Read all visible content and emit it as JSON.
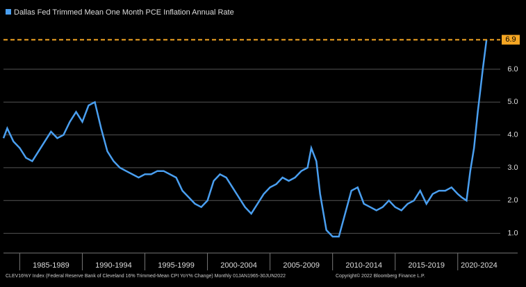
{
  "chart_data": {
    "type": "line",
    "title": "Dallas Fed Trimmed Mean One Month PCE Inflation Annual Rate",
    "footer": "CLEV16%Y Index (Federal Reserve Bank of Cleveland 16% Trimmed-Mean CPI YoY% Change)  Monthly 01JAN1965-30JUN2022",
    "copyright": "Copyright© 2022 Bloomberg Finance L.P.",
    "categories": [
      "1985-1989",
      "1990-1994",
      "1995-1999",
      "2000-2004",
      "2005-2009",
      "2010-2014",
      "2015-2019",
      "2020-2024"
    ],
    "xlim": [
      1983.7,
      2023.4
    ],
    "xticks": [
      1985,
      1990,
      1995,
      2000,
      2005,
      2010,
      2015,
      2020
    ],
    "ylim": [
      0.4,
      7.9
    ],
    "yticks": [
      {
        "value": 1,
        "label": "1.0"
      },
      {
        "value": 2,
        "label": "2.0"
      },
      {
        "value": 3,
        "label": "3.0"
      },
      {
        "value": 4,
        "label": "4.0"
      },
      {
        "value": 5,
        "label": "5.0"
      },
      {
        "value": 6,
        "label": "6.0"
      }
    ],
    "grid": true,
    "series": [
      {
        "name": "Dallas Fed Trimmed Mean One Month PCE Inflation Annual Rate",
        "color": "#4a9ff0",
        "x": [
          1983.7,
          1984,
          1984.5,
          1985,
          1985.5,
          1986,
          1986.5,
          1987,
          1987.5,
          1988,
          1988.5,
          1989,
          1989.5,
          1990,
          1990.5,
          1991,
          1991.5,
          1992,
          1992.5,
          1993,
          1993.5,
          1994,
          1994.5,
          1995,
          1995.5,
          1996,
          1996.5,
          1997,
          1997.5,
          1998,
          1998.5,
          1999,
          1999.5,
          2000,
          2000.5,
          2001,
          2001.5,
          2002,
          2002.5,
          2003,
          2003.5,
          2004,
          2004.5,
          2005,
          2005.5,
          2006,
          2006.5,
          2007,
          2007.5,
          2008,
          2008.3,
          2008.7,
          2009,
          2009.5,
          2010,
          2010.5,
          2011,
          2011.5,
          2012,
          2012.5,
          2013,
          2013.5,
          2014,
          2014.5,
          2015,
          2015.5,
          2016,
          2016.5,
          2017,
          2017.5,
          2018,
          2018.5,
          2019,
          2019.5,
          2020,
          2020.3,
          2020.7,
          2021,
          2021.3,
          2021.6,
          2022,
          2022.3
        ],
        "values": [
          3.9,
          4.2,
          3.8,
          3.6,
          3.3,
          3.2,
          3.5,
          3.8,
          4.1,
          3.9,
          4.0,
          4.4,
          4.7,
          4.4,
          4.9,
          5.0,
          4.2,
          3.5,
          3.2,
          3.0,
          2.9,
          2.8,
          2.7,
          2.8,
          2.8,
          2.9,
          2.9,
          2.8,
          2.7,
          2.3,
          2.1,
          1.9,
          1.8,
          2.0,
          2.6,
          2.8,
          2.7,
          2.4,
          2.1,
          1.8,
          1.6,
          1.9,
          2.2,
          2.4,
          2.5,
          2.7,
          2.6,
          2.7,
          2.9,
          3.0,
          3.6,
          3.2,
          2.2,
          1.1,
          0.9,
          0.9,
          1.6,
          2.3,
          2.4,
          1.9,
          1.8,
          1.7,
          1.8,
          2.0,
          1.8,
          1.7,
          1.9,
          2.0,
          2.3,
          1.9,
          2.2,
          2.3,
          2.3,
          2.4,
          2.2,
          2.1,
          2.0,
          2.9,
          3.6,
          4.7,
          6.0,
          6.9
        ]
      }
    ]
  }
}
